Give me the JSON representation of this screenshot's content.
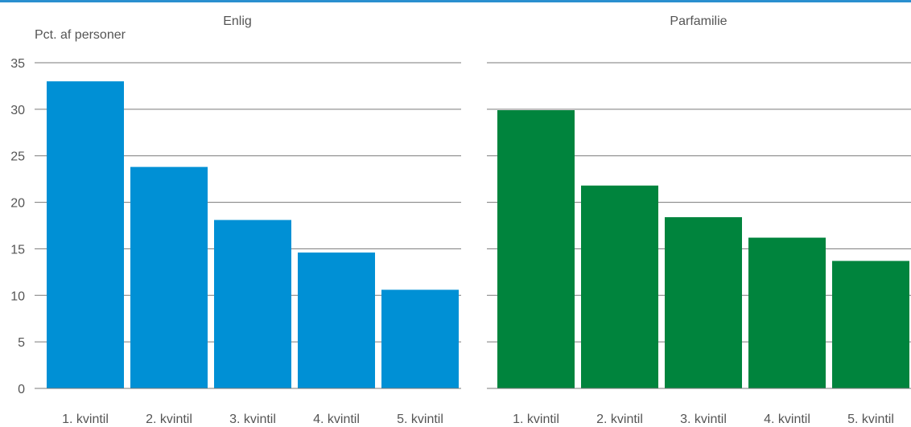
{
  "chart_data": {
    "type": "bar",
    "ylabel": "Pct. af personer",
    "ylim": [
      0,
      35
    ],
    "yticks": [
      0,
      5,
      10,
      15,
      20,
      25,
      30,
      35
    ],
    "grid": true,
    "categories": [
      "1. kvintil",
      "2. kvintil",
      "3. kvintil",
      "4. kvintil",
      "5. kvintil"
    ],
    "panels": [
      {
        "title": "Enlig",
        "color": "#0090d5",
        "values": [
          33.0,
          23.8,
          18.1,
          14.6,
          10.6
        ]
      },
      {
        "title": "Parfamilie",
        "color": "#00843d",
        "values": [
          29.9,
          21.8,
          18.4,
          16.2,
          13.7
        ]
      }
    ]
  }
}
